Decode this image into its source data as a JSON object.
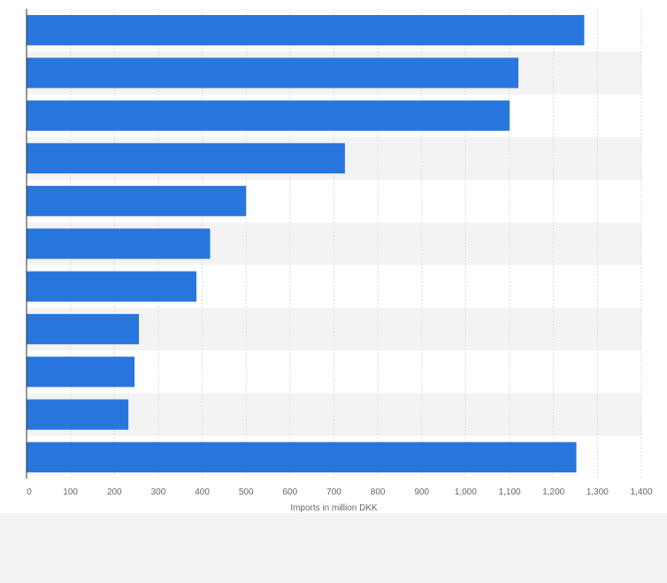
{
  "chart_data": {
    "type": "bar",
    "orientation": "horizontal",
    "title": "",
    "xlabel": "Imports in million DKK",
    "ylabel": "",
    "categories": [
      "",
      "",
      "",
      "",
      "",
      "",
      "",
      "",
      "",
      "",
      ""
    ],
    "values": [
      1270,
      1120,
      1100,
      725,
      500,
      418,
      387,
      256,
      246,
      232,
      1252
    ],
    "xlim": [
      0,
      1400
    ],
    "xticks": [
      0,
      100,
      200,
      300,
      400,
      500,
      600,
      700,
      800,
      900,
      1000,
      1100,
      1200,
      1300,
      1400
    ],
    "xtick_labels": [
      "0",
      "100",
      "200",
      "300",
      "400",
      "500",
      "600",
      "700",
      "800",
      "900",
      "1,000",
      "1,100",
      "1,200",
      "1,300",
      "1,400"
    ],
    "grid": true,
    "bar_color": "#2876dd",
    "row_band_color": "#f3f3f3",
    "grid_color": "#d9d9d9",
    "axis_color": "#333333"
  }
}
